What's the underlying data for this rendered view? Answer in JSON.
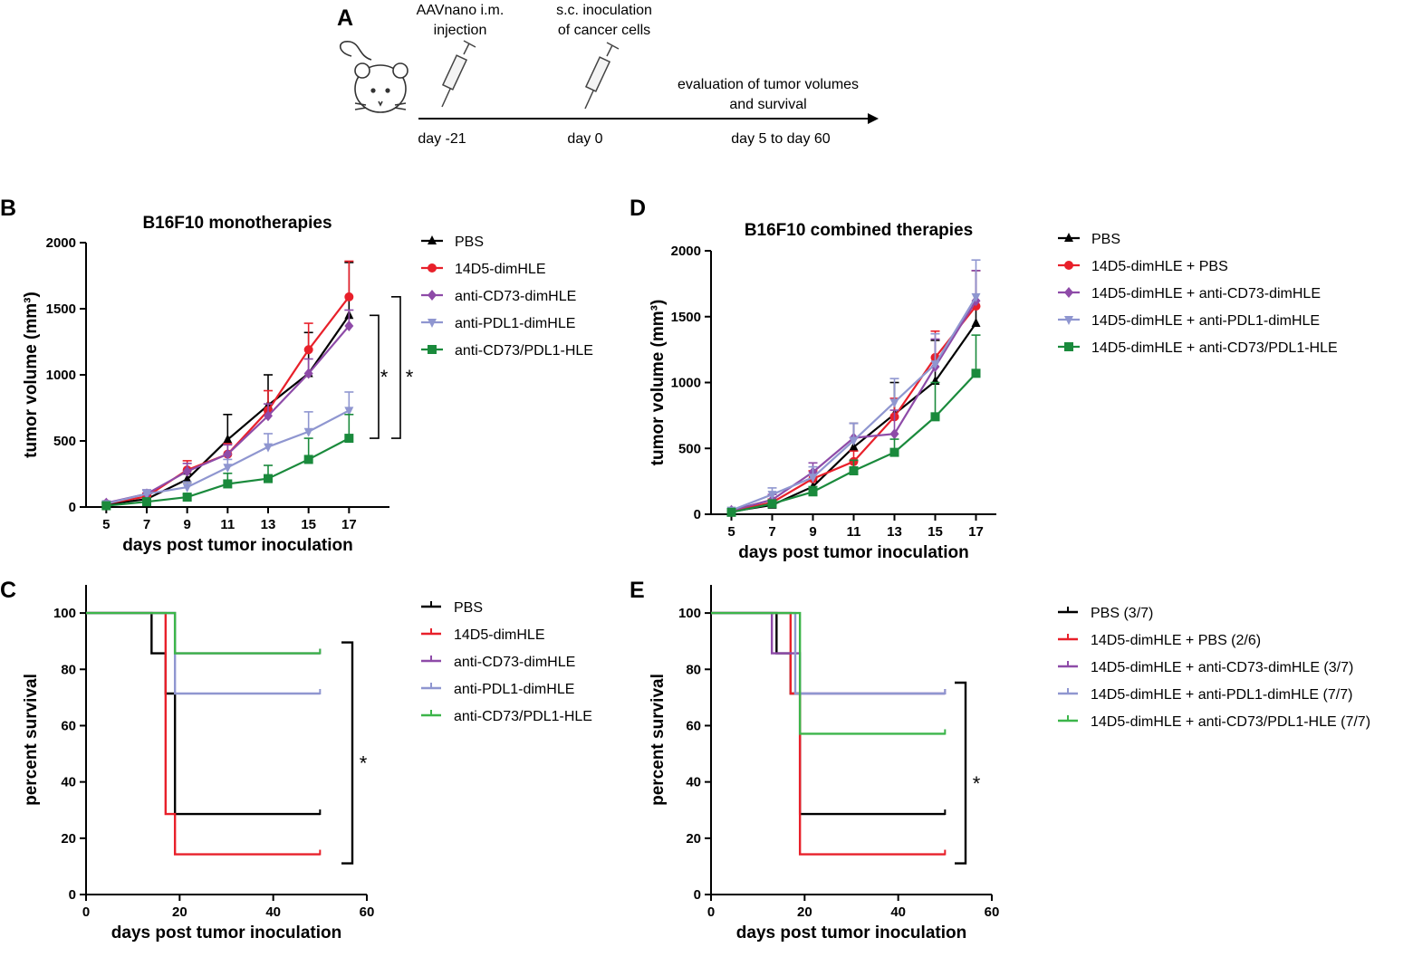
{
  "colors": {
    "PBS": "#000000",
    "14D5-dimHLE": "#e8202a",
    "anti-CD73-dimHLE": "#8e4ba8",
    "anti-PDL1-dimHLE": "#8f96d0",
    "anti-CD73/PDL1-HLE": "#1a8a3c",
    "survival_green": "#3cb54a"
  },
  "timeline": {
    "letter": "A",
    "step1_line1": "AAVnano i.m.",
    "step1_line2": "injection",
    "step2_line1": "s.c. inoculation",
    "step2_line2": "of cancer cells",
    "step3_line1": "evaluation of tumor volumes",
    "step3_line2": "and survival",
    "day1": "day -21",
    "day2": "day 0",
    "day3": "day 5 to day 60"
  },
  "chart_data": [
    {
      "id": "B",
      "letter": "B",
      "type": "line",
      "title": "B16F10 monotherapies",
      "xlabel": "days post tumor inoculation",
      "ylabel": "tumor volume (mm³)",
      "x": [
        5,
        7,
        9,
        11,
        13,
        15,
        17
      ],
      "xticks": [
        "5",
        "7",
        "9",
        "11",
        "13",
        "15",
        "17"
      ],
      "yticks": [
        "0",
        "500",
        "1000",
        "1500",
        "2000"
      ],
      "xlim": [
        4,
        19
      ],
      "ylim": [
        0,
        2000
      ],
      "series": [
        {
          "name": "PBS",
          "marker": "triangle",
          "values": [
            20,
            60,
            210,
            510,
            770,
            1010,
            1450
          ],
          "err": [
            10,
            25,
            40,
            190,
            230,
            310,
            400
          ]
        },
        {
          "name": "14D5-dimHLE",
          "marker": "circle",
          "values": [
            25,
            80,
            280,
            400,
            730,
            1190,
            1590
          ],
          "err": [
            10,
            25,
            70,
            80,
            150,
            200,
            270
          ]
        },
        {
          "name": "anti-CD73-dimHLE",
          "marker": "diamond",
          "values": [
            30,
            100,
            270,
            400,
            690,
            1010,
            1370
          ],
          "err": [
            10,
            30,
            60,
            70,
            90,
            110,
            120
          ]
        },
        {
          "name": "anti-PDL1-dimHLE",
          "marker": "triangle-down",
          "values": [
            25,
            100,
            150,
            300,
            455,
            570,
            730
          ],
          "err": [
            10,
            30,
            40,
            60,
            100,
            150,
            140
          ]
        },
        {
          "name": "anti-CD73/PDL1-HLE",
          "marker": "square",
          "values": [
            10,
            40,
            75,
            175,
            215,
            360,
            520
          ],
          "err": [
            5,
            15,
            20,
            80,
            100,
            160,
            180
          ]
        }
      ],
      "annotations": [
        "*",
        "*"
      ]
    },
    {
      "id": "D",
      "letter": "D",
      "type": "line",
      "title": "B16F10 combined therapies",
      "xlabel": "days post tumor inoculation",
      "ylabel": "tumor volume (mm³)",
      "x": [
        5,
        7,
        9,
        11,
        13,
        15,
        17
      ],
      "xticks": [
        "5",
        "7",
        "9",
        "11",
        "13",
        "15",
        "17"
      ],
      "yticks": [
        "0",
        "500",
        "1000",
        "1500",
        "2000"
      ],
      "xlim": [
        4,
        18
      ],
      "ylim": [
        0,
        2000
      ],
      "series": [
        {
          "name": "PBS",
          "marker": "triangle",
          "values": [
            20,
            70,
            210,
            510,
            760,
            1010,
            1450
          ],
          "err": [
            10,
            25,
            40,
            180,
            240,
            310,
            400
          ]
        },
        {
          "name": "14D5-dimHLE + PBS",
          "marker": "circle",
          "values": [
            25,
            90,
            270,
            400,
            740,
            1190,
            1580
          ],
          "err": [
            10,
            25,
            60,
            80,
            140,
            200,
            270
          ]
        },
        {
          "name": "14D5-dimHLE + anti-CD73-dimHLE",
          "marker": "diamond",
          "values": [
            30,
            110,
            320,
            580,
            610,
            1120,
            1620
          ],
          "err": [
            10,
            40,
            70,
            110,
            180,
            210,
            230
          ]
        },
        {
          "name": "14D5-dimHLE + anti-PDL1-dimHLE",
          "marker": "triangle-down",
          "values": [
            30,
            150,
            280,
            560,
            850,
            1140,
            1650
          ],
          "err": [
            10,
            50,
            80,
            130,
            180,
            230,
            280
          ]
        },
        {
          "name": "14D5-dimHLE + anti-CD73/PDL1-HLE",
          "marker": "square",
          "values": [
            15,
            80,
            170,
            330,
            470,
            740,
            1070
          ],
          "err": [
            5,
            25,
            40,
            80,
            100,
            260,
            290
          ]
        }
      ],
      "annotations": []
    },
    {
      "id": "C",
      "letter": "C",
      "type": "line",
      "title": "",
      "xlabel": "days post tumor inoculation",
      "ylabel": "percent survival",
      "xticks": [
        "0",
        "20",
        "40",
        "60"
      ],
      "yticks": [
        "0",
        "20",
        "40",
        "60",
        "80",
        "100"
      ],
      "xlim": [
        0,
        60
      ],
      "ylim": [
        0,
        110
      ],
      "series": [
        {
          "name": "PBS",
          "steps": [
            [
              0,
              100
            ],
            [
              14,
              100
            ],
            [
              14,
              85.7
            ],
            [
              17,
              85.7
            ],
            [
              17,
              71.4
            ],
            [
              19,
              71.4
            ],
            [
              19,
              28.6
            ],
            [
              50,
              28.6
            ]
          ]
        },
        {
          "name": "14D5-dimHLE",
          "steps": [
            [
              0,
              100
            ],
            [
              17,
              100
            ],
            [
              17,
              28.6
            ],
            [
              19,
              28.6
            ],
            [
              19,
              14.3
            ],
            [
              50,
              14.3
            ]
          ]
        },
        {
          "name": "anti-CD73-dimHLE",
          "steps": [
            [
              0,
              100
            ],
            [
              19,
              100
            ],
            [
              19,
              85.7
            ],
            [
              50,
              85.7
            ]
          ]
        },
        {
          "name": "anti-PDL1-dimHLE",
          "steps": [
            [
              0,
              100
            ],
            [
              19,
              100
            ],
            [
              19,
              71.4
            ],
            [
              50,
              71.4
            ]
          ]
        },
        {
          "name": "anti-CD73/PDL1-HLE",
          "steps": [
            [
              0,
              100
            ],
            [
              19,
              100
            ],
            [
              19,
              85.7
            ],
            [
              50,
              85.7
            ]
          ]
        }
      ],
      "annotations": [
        "*"
      ]
    },
    {
      "id": "E",
      "letter": "E",
      "type": "line",
      "title": "",
      "xlabel": "days post tumor inoculation",
      "ylabel": "percent survival",
      "xticks": [
        "0",
        "20",
        "40",
        "60"
      ],
      "yticks": [
        "0",
        "20",
        "40",
        "60",
        "80",
        "100"
      ],
      "xlim": [
        0,
        60
      ],
      "ylim": [
        0,
        110
      ],
      "series": [
        {
          "name": "PBS (3/7)",
          "steps": [
            [
              0,
              100
            ],
            [
              14,
              100
            ],
            [
              14,
              85.7
            ],
            [
              17,
              85.7
            ],
            [
              17,
              71.4
            ],
            [
              19,
              71.4
            ],
            [
              19,
              28.6
            ],
            [
              50,
              28.6
            ]
          ]
        },
        {
          "name": "14D5-dimHLE + PBS (2/6)",
          "steps": [
            [
              0,
              100
            ],
            [
              17,
              100
            ],
            [
              17,
              71.4
            ],
            [
              19,
              71.4
            ],
            [
              19,
              14.3
            ],
            [
              50,
              14.3
            ]
          ]
        },
        {
          "name": "14D5-dimHLE + anti-CD73-dimHLE (3/7)",
          "steps": [
            [
              0,
              100
            ],
            [
              13,
              100
            ],
            [
              13,
              85.7
            ],
            [
              19,
              85.7
            ],
            [
              19,
              71.4
            ],
            [
              50,
              71.4
            ]
          ]
        },
        {
          "name": "14D5-dimHLE + anti-PDL1-dimHLE (7/7)",
          "steps": [
            [
              0,
              100
            ],
            [
              18,
              100
            ],
            [
              18,
              71.4
            ],
            [
              50,
              71.4
            ]
          ]
        },
        {
          "name": "14D5-dimHLE + anti-CD73/PDL1-HLE (7/7)",
          "steps": [
            [
              0,
              100
            ],
            [
              19,
              100
            ],
            [
              19,
              57.1
            ],
            [
              50,
              57.1
            ]
          ]
        }
      ],
      "annotations": [
        "*"
      ]
    }
  ]
}
